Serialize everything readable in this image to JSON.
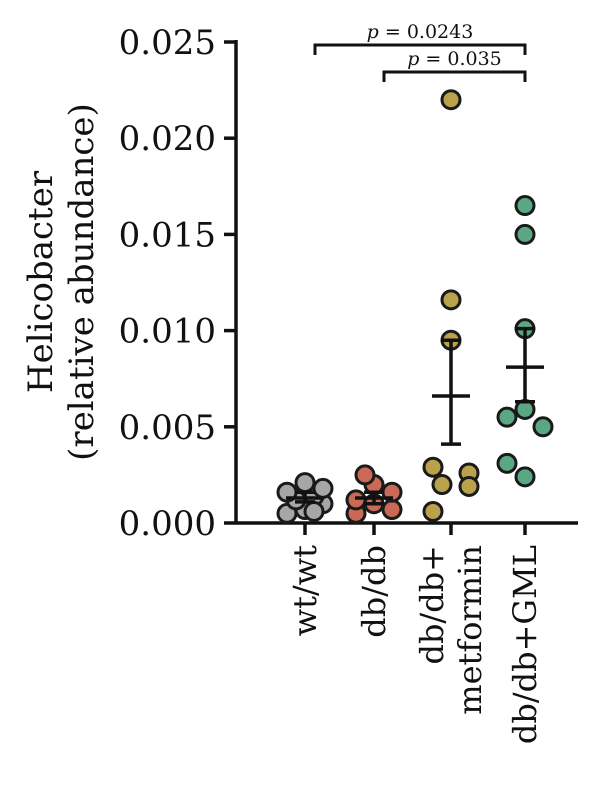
{
  "chart_data": {
    "type": "scatter",
    "ylabel_line1": "Helicobacter",
    "ylabel_line2": "(relative abundance)",
    "ylim": [
      0,
      0.025
    ],
    "yticks": [
      "0.000",
      "0.005",
      "0.010",
      "0.015",
      "0.020",
      "0.025"
    ],
    "grid": false,
    "categories": [
      {
        "label_lines": [
          "wt/wt"
        ],
        "color": "#a6a6a6"
      },
      {
        "label_lines": [
          "db/db"
        ],
        "color": "#c86a55"
      },
      {
        "label_lines": [
          "db/db+",
          "metformin"
        ],
        "color": "#b9a24b"
      },
      {
        "label_lines": [
          "db/db+GML"
        ],
        "color": "#5aa883"
      }
    ],
    "series": [
      {
        "points": [
          0.0005,
          0.0007,
          0.001,
          0.0012,
          0.0014,
          0.0016,
          0.0018,
          0.0021,
          0.0006
        ],
        "mean": 0.0013,
        "sem_low": 0.0011,
        "sem_high": 0.0016
      },
      {
        "points": [
          0.0005,
          0.0007,
          0.001,
          0.0012,
          0.0016,
          0.002,
          0.0025
        ],
        "mean": 0.0013,
        "sem_low": 0.001,
        "sem_high": 0.0016
      },
      {
        "points": [
          0.022,
          0.0116,
          0.0095,
          0.0029,
          0.0026,
          0.002,
          0.0019,
          0.0006
        ],
        "mean": 0.0066,
        "sem_low": 0.0041,
        "sem_high": 0.0095
      },
      {
        "points": [
          0.0165,
          0.015,
          0.0101,
          0.0055,
          0.005,
          0.0059,
          0.0031,
          0.0024
        ],
        "mean": 0.0081,
        "sem_low": 0.0063,
        "sem_high": 0.0101
      }
    ],
    "annotations": [
      {
        "text_p": "p",
        "text_rest": " = 0.0243",
        "from": 0,
        "to": 3
      },
      {
        "text_p": "p",
        "text_rest": " = 0.035",
        "from": 1,
        "to": 3
      }
    ]
  }
}
